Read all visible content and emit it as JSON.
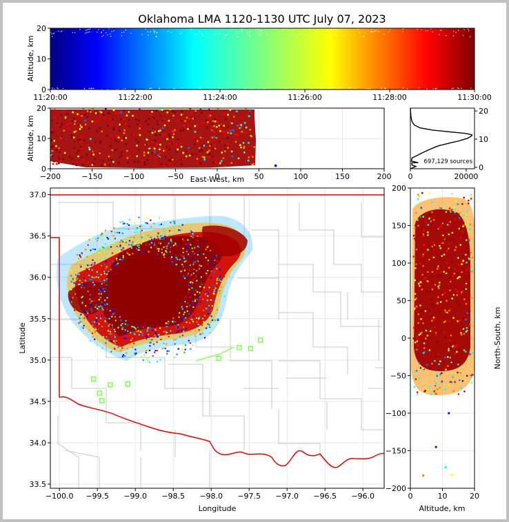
{
  "colors": {
    "background": "#c0c0c0",
    "panel": "#ffffff",
    "state_border": "#e00000",
    "county_lines": "#c8c8c8",
    "hist_line": "#000000",
    "grid": "#e6e6e6",
    "colormap": [
      "#00007f",
      "#0000ff",
      "#007fff",
      "#00ffff",
      "#7fff7f",
      "#ffff00",
      "#ff7f00",
      "#ff0000",
      "#7f0000"
    ]
  },
  "chart_data": [
    {
      "panel": "time-altitude",
      "type": "scatter",
      "title": "Oklahoma LMA 1120-1130 UTC July 07, 2023",
      "xlabel": "",
      "ylabel": "Altitude, km",
      "x_ticks": [
        "11:20:00",
        "11:22:00",
        "11:24:00",
        "11:26:00",
        "11:28:00",
        "11:30:00"
      ],
      "y_ticks": [
        "0",
        "10",
        "20"
      ],
      "xlim": [
        "11:20:00",
        "11:30:00"
      ],
      "ylim": [
        0,
        20
      ],
      "color_by": "time",
      "altitude_band_km": [
        0.5,
        19.5
      ]
    },
    {
      "panel": "east-west-altitude",
      "type": "scatter",
      "xlabel": "East-West, km",
      "ylabel": "Altitude, km",
      "x_ticks": [
        "−200",
        "−150",
        "−100",
        "−50",
        "0",
        "50",
        "100",
        "150",
        "200"
      ],
      "y_ticks": [
        "0",
        "10",
        "20"
      ],
      "xlim": [
        -200,
        200
      ],
      "ylim": [
        0,
        20
      ],
      "source_extent_km": [
        -200,
        45
      ],
      "outlier": {
        "x": 70,
        "y": 1
      }
    },
    {
      "panel": "altitude-histogram",
      "type": "line",
      "x_ticks": [
        "0",
        "20000"
      ],
      "y_ticks": [
        "0",
        "10",
        "20"
      ],
      "xlim": [
        0,
        23000
      ],
      "ylim": [
        -0.5,
        21
      ],
      "annotation": "697,129 sources",
      "profile": [
        [
          0,
          -0.5
        ],
        [
          2000,
          0.3
        ],
        [
          600,
          0.8
        ],
        [
          500,
          1.6
        ],
        [
          2800,
          1.7
        ],
        [
          400,
          2.2
        ],
        [
          600,
          3.3
        ],
        [
          2000,
          4.0
        ],
        [
          4000,
          5.0
        ],
        [
          6500,
          6.2
        ],
        [
          10000,
          7.6
        ],
        [
          14000,
          8.6
        ],
        [
          17500,
          9.4
        ],
        [
          20500,
          10.3
        ],
        [
          21800,
          11.0
        ],
        [
          22100,
          11.5
        ],
        [
          20000,
          12.0
        ],
        [
          14000,
          12.6
        ],
        [
          8000,
          13.2
        ],
        [
          3500,
          14.0
        ],
        [
          1400,
          15.0
        ],
        [
          600,
          16.2
        ],
        [
          250,
          17.7
        ],
        [
          100,
          19.5
        ],
        [
          0,
          21
        ]
      ]
    },
    {
      "panel": "plan-view",
      "type": "scatter",
      "xlabel": "Longitude",
      "ylabel": "Latitude",
      "x_ticks": [
        "−100.0",
        "−99.5",
        "−99.0",
        "−98.5",
        "−98.0",
        "−97.5",
        "−97.0",
        "−96.5",
        "−96.0"
      ],
      "y_ticks": [
        "33.5",
        "34.0",
        "34.5",
        "35.0",
        "35.5",
        "36.0",
        "36.5",
        "37.0"
      ],
      "xlim": [
        -100.12,
        -95.72
      ],
      "ylim": [
        33.45,
        37.08
      ],
      "stations": [
        {
          "lon": -99.55,
          "lat": 34.77
        },
        {
          "lon": -99.47,
          "lat": 34.6
        },
        {
          "lon": -99.44,
          "lat": 34.51
        },
        {
          "lon": -99.33,
          "lat": 34.7
        },
        {
          "lon": -99.1,
          "lat": 34.71
        },
        {
          "lon": -97.9,
          "lat": 35.02
        },
        {
          "lon": -97.63,
          "lat": 35.15
        },
        {
          "lon": -97.35,
          "lat": 35.24
        },
        {
          "lon": -97.48,
          "lat": 35.14
        }
      ]
    },
    {
      "panel": "altitude-north-south",
      "type": "scatter",
      "xlabel": "Altitude, km",
      "ylabel": "North-South, km",
      "x_ticks": [
        "0",
        "10",
        "20"
      ],
      "y_ticks": [
        "−200",
        "−150",
        "−100",
        "−50",
        "0",
        "50",
        "100",
        "150",
        "200"
      ],
      "xlim": [
        0,
        20
      ],
      "ylim": [
        -200,
        200
      ]
    }
  ]
}
